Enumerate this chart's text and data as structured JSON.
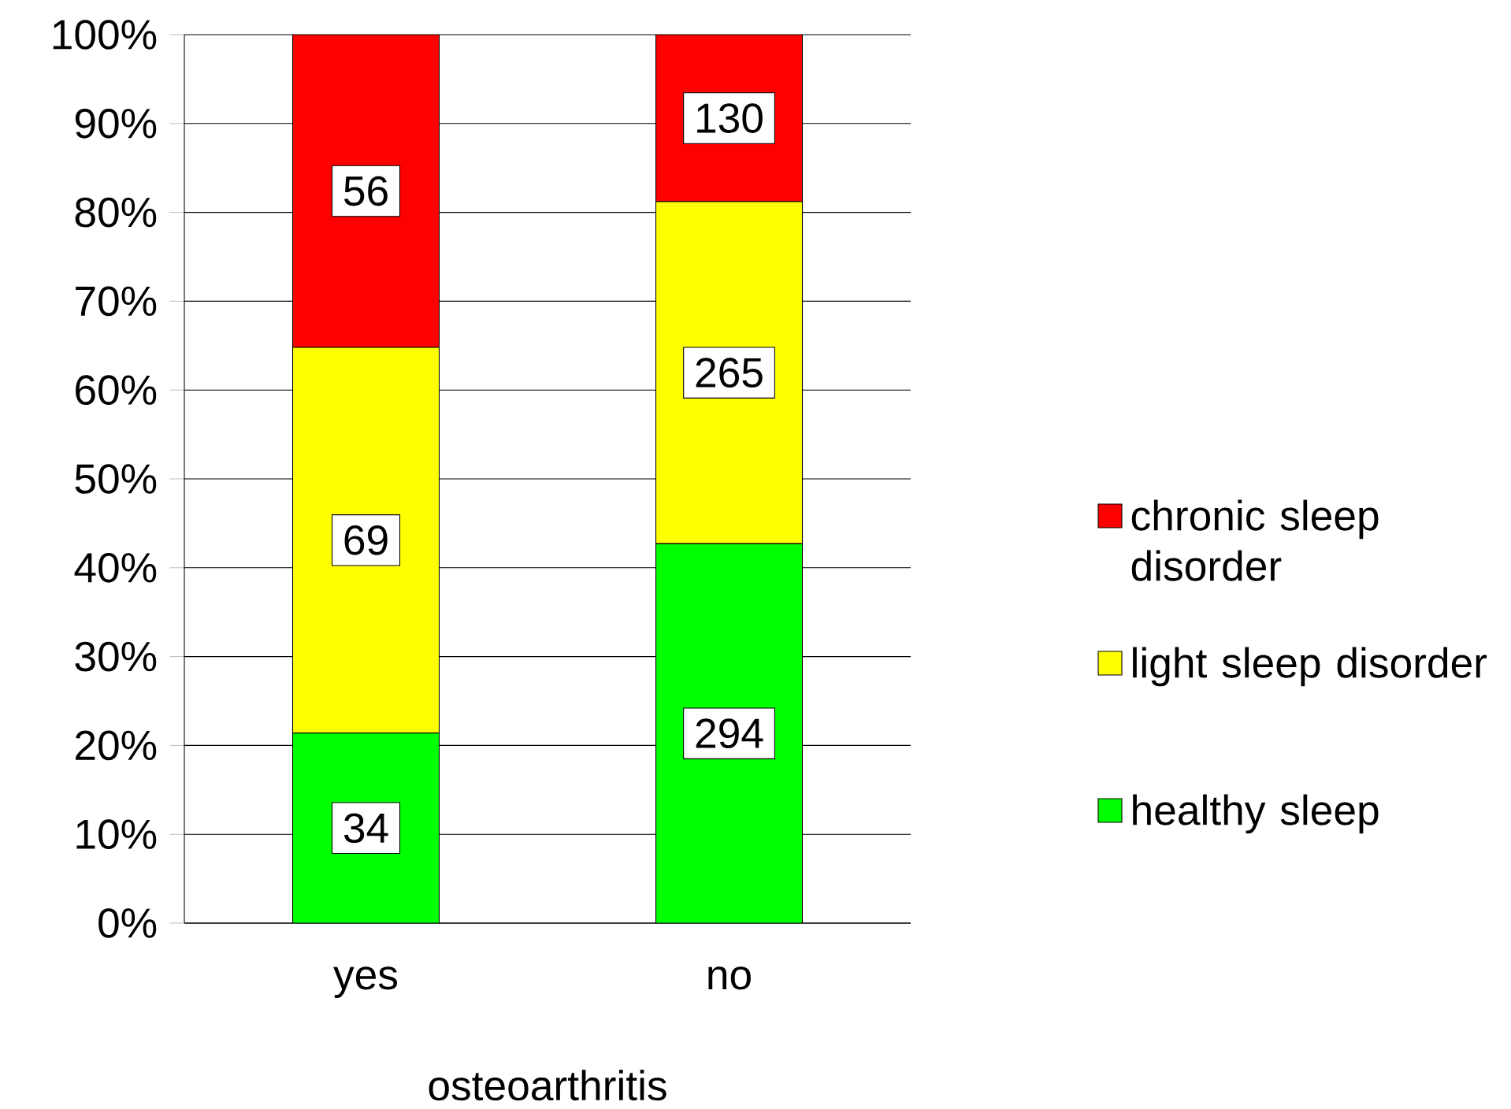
{
  "chart_data": {
    "type": "bar",
    "stacked": true,
    "xlabel": "osteoarthritis",
    "categories": [
      "yes",
      "no"
    ],
    "series": [
      {
        "name": "healthy sleep",
        "color": "#00ff00",
        "values": [
          21.4,
          42.7
        ]
      },
      {
        "name": "light sleep disorder",
        "color": "#ffff00",
        "values": [
          43.4,
          38.5
        ]
      },
      {
        "name": "chronic sleep disorder",
        "color": "#ff0000",
        "values": [
          35.2,
          18.8
        ]
      }
    ],
    "annotations": [
      "34",
      "69",
      "56",
      "294",
      "265",
      "130"
    ],
    "ylim": [
      0,
      100
    ],
    "yticks": [
      {
        "value": 0,
        "label": "0%"
      },
      {
        "value": 10,
        "label": "10%"
      },
      {
        "value": 20,
        "label": "20%"
      },
      {
        "value": 30,
        "label": "30%"
      },
      {
        "value": 40,
        "label": "40%"
      },
      {
        "value": 50,
        "label": "50%"
      },
      {
        "value": 60,
        "label": "60%"
      },
      {
        "value": 70,
        "label": "70%"
      },
      {
        "value": 80,
        "label": "80%"
      },
      {
        "value": 90,
        "label": "90%"
      },
      {
        "value": 100,
        "label": "100%"
      }
    ],
    "grid": "y",
    "legend": "right"
  }
}
